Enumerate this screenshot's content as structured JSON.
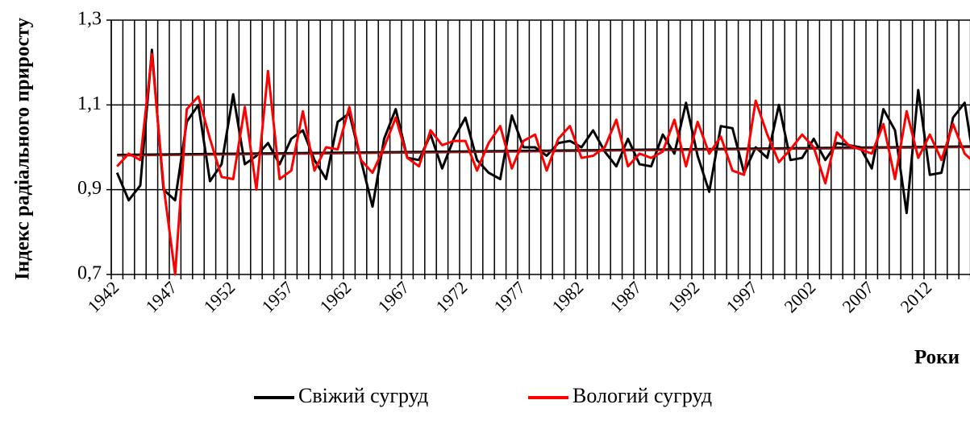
{
  "chart_data": {
    "type": "line",
    "y_label": "Індекс радіального приросту",
    "x_label": "Роки",
    "categories": [
      "1942",
      null,
      null,
      null,
      null,
      "1947",
      null,
      null,
      null,
      null,
      "1952",
      null,
      null,
      null,
      null,
      "1957",
      null,
      null,
      null,
      null,
      "1962",
      null,
      null,
      null,
      null,
      "1967",
      null,
      null,
      null,
      null,
      "1972",
      null,
      null,
      null,
      null,
      "1977",
      null,
      null,
      null,
      null,
      "1982",
      null,
      null,
      null,
      null,
      "1987",
      null,
      null,
      null,
      null,
      "1992",
      null,
      null,
      null,
      null,
      "1997",
      null,
      null,
      null,
      null,
      "2002",
      null,
      null,
      null,
      null,
      "2007",
      null,
      null,
      null,
      null,
      "2012",
      null,
      null,
      null,
      null
    ],
    "series": [
      {
        "name": "Свіжий сугруд",
        "color": "#000000",
        "trend": [
          0.983,
          1.003
        ],
        "values": [
          0.94,
          0.875,
          0.91,
          1.23,
          0.9,
          0.875,
          1.06,
          1.1,
          0.92,
          0.96,
          1.125,
          0.96,
          0.98,
          1.01,
          0.96,
          1.02,
          1.04,
          0.97,
          0.925,
          1.06,
          1.08,
          0.97,
          0.86,
          1.02,
          1.09,
          0.975,
          0.97,
          1.03,
          0.95,
          1.02,
          1.07,
          0.97,
          0.94,
          0.925,
          1.075,
          1.0,
          1.0,
          0.98,
          1.01,
          1.015,
          1.0,
          1.04,
          0.99,
          0.955,
          1.02,
          0.96,
          0.955,
          1.03,
          0.985,
          1.105,
          0.98,
          0.895,
          1.05,
          1.045,
          0.94,
          1.0,
          0.975,
          1.1,
          0.97,
          0.975,
          1.02,
          0.97,
          1.01,
          1.005,
          1.0,
          0.95,
          1.09,
          1.04,
          0.845,
          1.135,
          0.935,
          0.94,
          1.07,
          1.105,
          0.93
        ]
      },
      {
        "name": "Вологий сугруд",
        "color": "#ff0000",
        "trend": [
          0.98,
          1.0
        ],
        "values": [
          0.955,
          0.985,
          0.97,
          1.22,
          0.91,
          0.7,
          1.09,
          1.12,
          1.02,
          0.93,
          0.925,
          1.095,
          0.9,
          1.18,
          0.925,
          0.945,
          1.085,
          0.945,
          1.0,
          0.995,
          1.095,
          0.97,
          0.94,
          1.0,
          1.07,
          0.975,
          0.955,
          1.04,
          1.005,
          1.015,
          1.015,
          0.945,
          1.01,
          1.05,
          0.95,
          1.015,
          1.03,
          0.945,
          1.02,
          1.05,
          0.975,
          0.98,
          1.0,
          1.065,
          0.955,
          0.985,
          0.975,
          0.99,
          1.065,
          0.955,
          1.06,
          0.985,
          1.025,
          0.945,
          0.935,
          1.11,
          1.03,
          0.965,
          0.995,
          1.03,
          1.0,
          0.915,
          1.035,
          1.005,
          0.995,
          0.985,
          1.055,
          0.925,
          1.085,
          0.975,
          1.03,
          0.97,
          1.055,
          0.985,
          0.96
        ]
      }
    ],
    "ylim": [
      0.7,
      1.3
    ],
    "yticks": [
      {
        "value": 0.7,
        "label": "0,7"
      },
      {
        "value": 0.9,
        "label": "0,9"
      },
      {
        "value": 1.1,
        "label": "1,1"
      },
      {
        "value": 1.3,
        "label": "1,3"
      }
    ],
    "grid": true
  }
}
